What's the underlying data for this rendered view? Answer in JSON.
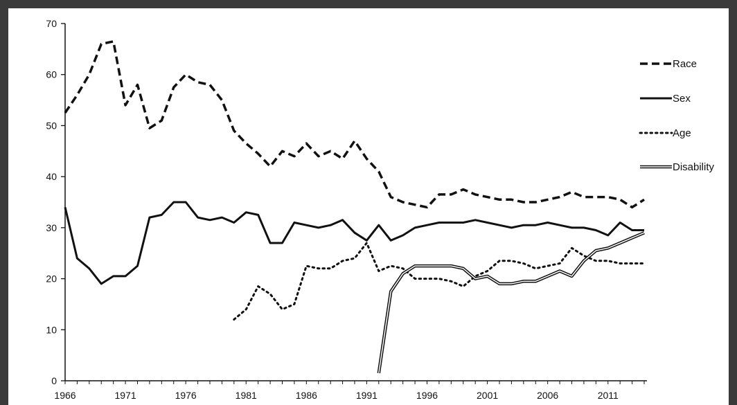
{
  "chart_data": {
    "type": "line",
    "title": "",
    "xlabel": "",
    "ylabel": "",
    "xlim": [
      1966,
      2014
    ],
    "ylim": [
      0,
      70
    ],
    "yticks": [
      0,
      10,
      20,
      30,
      40,
      50,
      60,
      70
    ],
    "xticks": [
      1966,
      1971,
      1976,
      1981,
      1986,
      1991,
      1996,
      2001,
      2006,
      2011
    ],
    "grid": false,
    "legend_position": "right",
    "series": [
      {
        "name": "Race",
        "style": "dashed",
        "color": "#111111",
        "x": [
          1966,
          1967,
          1968,
          1969,
          1970,
          1971,
          1972,
          1973,
          1974,
          1975,
          1976,
          1977,
          1978,
          1979,
          1980,
          1981,
          1982,
          1983,
          1984,
          1985,
          1986,
          1987,
          1988,
          1989,
          1990,
          1991,
          1992,
          1993,
          1994,
          1995,
          1996,
          1997,
          1998,
          1999,
          2000,
          2001,
          2002,
          2003,
          2004,
          2005,
          2006,
          2007,
          2008,
          2009,
          2010,
          2011,
          2012,
          2013,
          2014
        ],
        "y": [
          52.5,
          56,
          60,
          66,
          66.5,
          54,
          58,
          49.5,
          51,
          57.5,
          60,
          58.5,
          58,
          55,
          49,
          46.5,
          44.5,
          42,
          45,
          44,
          46.5,
          44,
          45,
          43.5,
          47,
          43.5,
          41,
          36,
          35,
          34.5,
          34,
          36.5,
          36.5,
          37.5,
          36.5,
          36,
          35.5,
          35.5,
          35,
          35,
          35.5,
          36,
          37,
          36,
          36,
          36,
          35.5,
          34,
          35.5
        ]
      },
      {
        "name": "Sex",
        "style": "solid",
        "color": "#111111",
        "x": [
          1966,
          1967,
          1968,
          1969,
          1970,
          1971,
          1972,
          1973,
          1974,
          1975,
          1976,
          1977,
          1978,
          1979,
          1980,
          1981,
          1982,
          1983,
          1984,
          1985,
          1986,
          1987,
          1988,
          1989,
          1990,
          1991,
          1992,
          1993,
          1994,
          1995,
          1996,
          1997,
          1998,
          1999,
          2000,
          2001,
          2002,
          2003,
          2004,
          2005,
          2006,
          2007,
          2008,
          2009,
          2010,
          2011,
          2012,
          2013,
          2014
        ],
        "y": [
          34,
          24,
          22,
          19,
          20.5,
          20.5,
          22.5,
          32,
          32.5,
          35,
          35,
          32,
          31.5,
          32,
          31,
          33,
          32.5,
          27,
          27,
          31,
          30.5,
          30,
          30.5,
          31.5,
          29,
          27.5,
          30.5,
          27.5,
          28.5,
          30,
          30.5,
          31,
          31,
          31,
          31.5,
          31,
          30.5,
          30,
          30.5,
          30.5,
          31,
          30.5,
          30,
          30,
          29.5,
          28.5,
          31,
          29.5,
          29.5
        ]
      },
      {
        "name": "Age",
        "style": "dotted",
        "color": "#111111",
        "x": [
          1980,
          1981,
          1982,
          1983,
          1984,
          1985,
          1986,
          1987,
          1988,
          1989,
          1990,
          1991,
          1992,
          1993,
          1994,
          1995,
          1996,
          1997,
          1998,
          1999,
          2000,
          2001,
          2002,
          2003,
          2004,
          2005,
          2006,
          2007,
          2008,
          2009,
          2010,
          2011,
          2012,
          2013,
          2014
        ],
        "y": [
          12,
          14,
          18.5,
          17,
          14,
          15,
          22.5,
          22,
          22,
          23.5,
          24,
          27,
          21.5,
          22.5,
          22,
          20,
          20,
          20,
          19.5,
          18.5,
          20.5,
          21.5,
          23.5,
          23.5,
          23,
          22,
          22.5,
          23,
          26,
          24.5,
          23.5,
          23.5,
          23,
          23,
          23
        ]
      },
      {
        "name": "Disability",
        "style": "double",
        "color": "#111111",
        "x": [
          1992,
          1993,
          1994,
          1995,
          1996,
          1997,
          1998,
          1999,
          2000,
          2001,
          2002,
          2003,
          2004,
          2005,
          2006,
          2007,
          2008,
          2009,
          2010,
          2011,
          2012,
          2013,
          2014
        ],
        "y": [
          1.5,
          17.5,
          21,
          22.5,
          22.5,
          22.5,
          22.5,
          22,
          20,
          20.5,
          19,
          19,
          19.5,
          19.5,
          20.5,
          21.5,
          20.5,
          23.5,
          25.5,
          26,
          27,
          28,
          29
        ]
      }
    ]
  }
}
